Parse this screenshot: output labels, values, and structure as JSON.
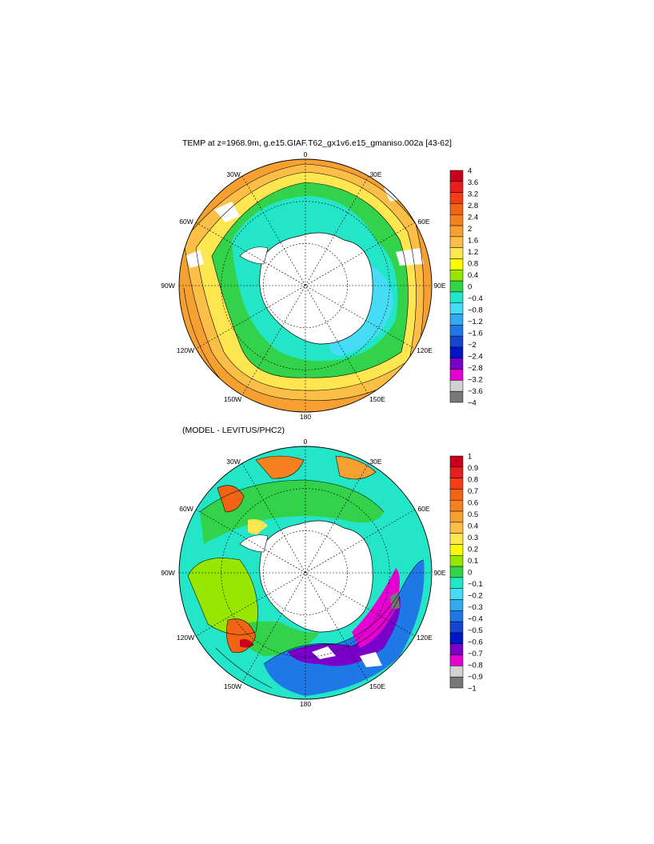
{
  "panels": [
    {
      "title": "TEMP at z=1968.9m, g.e15.GIAF.T62_gx1v6.e15_gmaniso.002a [43-62]",
      "lon_labels": [
        "0",
        "30E",
        "60E",
        "90E",
        "120E",
        "150E",
        "180",
        "150W",
        "120W",
        "90W",
        "60W",
        "30W"
      ],
      "colorbar": {
        "labels": [
          "4",
          "3.6",
          "3.2",
          "2.8",
          "2.4",
          "2",
          "1.6",
          "1.2",
          "0.8",
          "0.4",
          "0",
          "−0.4",
          "−0.8",
          "−1.2",
          "−1.6",
          "−2",
          "−2.4",
          "−2.8",
          "−3.2",
          "−3.6",
          "−4"
        ],
        "colors": [
          "#c8001e",
          "#e61e1e",
          "#fa3c14",
          "#f06414",
          "#f5821e",
          "#f7a032",
          "#fbbe46",
          "#fde650",
          "#fafa00",
          "#96e600",
          "#32d24b",
          "#23e6c8",
          "#46dcf5",
          "#32aaf0",
          "#1e78e6",
          "#1446d2",
          "#0014c8",
          "#7800c8",
          "#e600d2",
          "#d2d2d2",
          "#787878"
        ]
      }
    },
    {
      "title": "(MODEL - LEVITUS/PHC2)",
      "lon_labels": [
        "0",
        "30E",
        "60E",
        "90E",
        "120E",
        "150E",
        "180",
        "150W",
        "120W",
        "90W",
        "60W",
        "30W"
      ],
      "colorbar": {
        "labels": [
          "1",
          "0.9",
          "0.8",
          "0.7",
          "0.6",
          "0.5",
          "0.4",
          "0.3",
          "0.2",
          "0.1",
          "0",
          "−0.1",
          "−0.2",
          "−0.3",
          "−0.4",
          "−0.5",
          "−0.6",
          "−0.7",
          "−0.8",
          "−0.9",
          "−1"
        ],
        "colors": [
          "#c8001e",
          "#e61e1e",
          "#fa3c14",
          "#f06414",
          "#f5821e",
          "#f7a032",
          "#fbbe46",
          "#fde650",
          "#fafa00",
          "#96e600",
          "#32d24b",
          "#23e6c8",
          "#46dcf5",
          "#32aaf0",
          "#1e78e6",
          "#1446d2",
          "#0014c8",
          "#7800c8",
          "#e600d2",
          "#d2d2d2",
          "#787878"
        ]
      }
    }
  ]
}
